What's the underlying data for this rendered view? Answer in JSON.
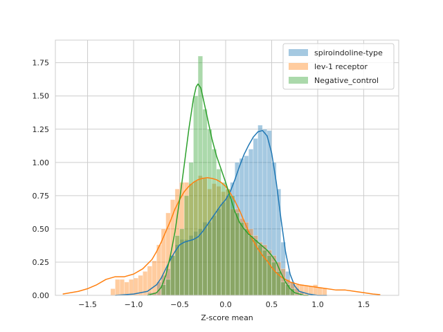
{
  "chart_data": {
    "type": "histogram+kde",
    "title": "",
    "xlabel": "Z-score mean",
    "ylabel": "",
    "xlim": [
      -1.85,
      1.88
    ],
    "ylim": [
      0,
      1.92
    ],
    "xticks": [
      -1.5,
      -1.0,
      -0.5,
      0.0,
      0.5,
      1.0,
      1.5
    ],
    "xtick_labels": [
      "−1.5",
      "−1.0",
      "−0.5",
      "0.0",
      "0.5",
      "1.0",
      "1.5"
    ],
    "yticks": [
      0,
      0.25,
      0.5,
      0.75,
      1.0,
      1.25,
      1.5,
      1.75
    ],
    "ytick_labels": [
      "0.00",
      "0.25",
      "0.50",
      "0.75",
      "1.00",
      "1.25",
      "1.50",
      "1.75"
    ],
    "grid": true,
    "legend_position": "top-right",
    "series": [
      {
        "name": "spiroindoline-type",
        "color": "#1f77b4",
        "bins": [
          [
            -0.85,
            -0.8,
            0.02
          ],
          [
            -0.8,
            -0.75,
            0.02
          ],
          [
            -0.75,
            -0.7,
            0.1
          ],
          [
            -0.7,
            -0.65,
            0.15
          ],
          [
            -0.65,
            -0.6,
            0.2
          ],
          [
            -0.6,
            -0.55,
            0.3
          ],
          [
            -0.55,
            -0.5,
            0.38
          ],
          [
            -0.5,
            -0.45,
            0.42
          ],
          [
            -0.45,
            -0.4,
            0.42
          ],
          [
            -0.4,
            -0.35,
            0.45
          ],
          [
            -0.35,
            -0.3,
            0.48
          ],
          [
            -0.3,
            -0.25,
            0.5
          ],
          [
            -0.25,
            -0.2,
            0.55
          ],
          [
            -0.2,
            -0.15,
            0.55
          ],
          [
            -0.15,
            -0.1,
            0.6
          ],
          [
            -0.1,
            -0.05,
            0.65
          ],
          [
            -0.05,
            0.0,
            0.7
          ],
          [
            0.0,
            0.05,
            0.75
          ],
          [
            0.05,
            0.1,
            0.85
          ],
          [
            0.1,
            0.15,
            1.0
          ],
          [
            0.15,
            0.2,
            1.03
          ],
          [
            0.2,
            0.25,
            1.05
          ],
          [
            0.25,
            0.3,
            1.1
          ],
          [
            0.3,
            0.35,
            1.18
          ],
          [
            0.35,
            0.4,
            1.28
          ],
          [
            0.4,
            0.45,
            1.25
          ],
          [
            0.45,
            0.5,
            1.24
          ],
          [
            0.5,
            0.55,
            1.0
          ],
          [
            0.55,
            0.6,
            0.8
          ],
          [
            0.6,
            0.65,
            0.4
          ],
          [
            0.65,
            0.7,
            0.18
          ],
          [
            0.7,
            0.75,
            0.1
          ],
          [
            0.75,
            0.8,
            0.05
          ],
          [
            0.8,
            0.85,
            0.02
          ]
        ],
        "kde": [
          [
            -1.2,
            0.0
          ],
          [
            -1.0,
            0.01
          ],
          [
            -0.85,
            0.03
          ],
          [
            -0.75,
            0.08
          ],
          [
            -0.7,
            0.13
          ],
          [
            -0.65,
            0.2
          ],
          [
            -0.6,
            0.27
          ],
          [
            -0.55,
            0.33
          ],
          [
            -0.5,
            0.38
          ],
          [
            -0.45,
            0.4
          ],
          [
            -0.4,
            0.41
          ],
          [
            -0.35,
            0.42
          ],
          [
            -0.3,
            0.44
          ],
          [
            -0.25,
            0.48
          ],
          [
            -0.2,
            0.53
          ],
          [
            -0.15,
            0.58
          ],
          [
            -0.1,
            0.63
          ],
          [
            -0.05,
            0.68
          ],
          [
            0.0,
            0.72
          ],
          [
            0.05,
            0.78
          ],
          [
            0.1,
            0.87
          ],
          [
            0.15,
            0.97
          ],
          [
            0.2,
            1.06
          ],
          [
            0.25,
            1.13
          ],
          [
            0.3,
            1.19
          ],
          [
            0.35,
            1.23
          ],
          [
            0.4,
            1.24
          ],
          [
            0.45,
            1.2
          ],
          [
            0.5,
            1.07
          ],
          [
            0.55,
            0.85
          ],
          [
            0.6,
            0.58
          ],
          [
            0.65,
            0.33
          ],
          [
            0.7,
            0.16
          ],
          [
            0.75,
            0.07
          ],
          [
            0.8,
            0.03
          ],
          [
            0.9,
            0.01
          ],
          [
            1.0,
            0.0
          ],
          [
            1.1,
            0.0
          ]
        ]
      },
      {
        "name": "lev-1 receptor",
        "color": "#ff7f0e",
        "bins": [
          [
            -1.25,
            -1.2,
            0.05
          ],
          [
            -1.2,
            -1.15,
            0.12
          ],
          [
            -1.15,
            -1.1,
            0.12
          ],
          [
            -1.1,
            -1.05,
            0.1
          ],
          [
            -1.05,
            -1.0,
            0.12
          ],
          [
            -1.0,
            -0.95,
            0.13
          ],
          [
            -0.95,
            -0.9,
            0.15
          ],
          [
            -0.9,
            -0.85,
            0.18
          ],
          [
            -0.85,
            -0.8,
            0.22
          ],
          [
            -0.8,
            -0.75,
            0.26
          ],
          [
            -0.75,
            -0.7,
            0.38
          ],
          [
            -0.7,
            -0.65,
            0.5
          ],
          [
            -0.65,
            -0.6,
            0.62
          ],
          [
            -0.6,
            -0.55,
            0.72
          ],
          [
            -0.55,
            -0.5,
            0.8
          ],
          [
            -0.5,
            -0.45,
            0.85
          ],
          [
            -0.45,
            -0.4,
            0.85
          ],
          [
            -0.4,
            -0.35,
            0.84
          ],
          [
            -0.35,
            -0.3,
            0.86
          ],
          [
            -0.3,
            -0.25,
            0.9
          ],
          [
            -0.25,
            -0.2,
            0.88
          ],
          [
            -0.2,
            -0.15,
            0.8
          ],
          [
            -0.15,
            -0.1,
            0.84
          ],
          [
            -0.1,
            -0.05,
            0.82
          ],
          [
            -0.05,
            0.0,
            0.78
          ],
          [
            0.0,
            0.05,
            0.8
          ],
          [
            0.05,
            0.1,
            0.65
          ],
          [
            0.1,
            0.15,
            0.65
          ],
          [
            0.15,
            0.2,
            0.58
          ],
          [
            0.2,
            0.25,
            0.55
          ],
          [
            0.25,
            0.3,
            0.5
          ],
          [
            0.3,
            0.35,
            0.45
          ],
          [
            0.35,
            0.4,
            0.4
          ],
          [
            0.4,
            0.45,
            0.38
          ],
          [
            0.45,
            0.5,
            0.34
          ],
          [
            0.5,
            0.55,
            0.3
          ],
          [
            0.55,
            0.6,
            0.25
          ],
          [
            0.6,
            0.65,
            0.2
          ],
          [
            0.65,
            0.7,
            0.12
          ],
          [
            0.7,
            0.75,
            0.1
          ],
          [
            0.75,
            0.8,
            0.08
          ],
          [
            0.8,
            0.85,
            0.08
          ],
          [
            0.85,
            0.9,
            0.07
          ],
          [
            0.9,
            0.95,
            0.07
          ],
          [
            0.95,
            1.0,
            0.08
          ],
          [
            1.0,
            1.05,
            0.06
          ],
          [
            1.05,
            1.1,
            0.05
          ]
        ],
        "kde": [
          [
            -1.77,
            0.01
          ],
          [
            -1.6,
            0.03
          ],
          [
            -1.5,
            0.05
          ],
          [
            -1.4,
            0.08
          ],
          [
            -1.3,
            0.12
          ],
          [
            -1.2,
            0.14
          ],
          [
            -1.1,
            0.14
          ],
          [
            -1.0,
            0.16
          ],
          [
            -0.9,
            0.2
          ],
          [
            -0.8,
            0.27
          ],
          [
            -0.75,
            0.33
          ],
          [
            -0.7,
            0.4
          ],
          [
            -0.65,
            0.48
          ],
          [
            -0.6,
            0.56
          ],
          [
            -0.55,
            0.65
          ],
          [
            -0.5,
            0.72
          ],
          [
            -0.45,
            0.78
          ],
          [
            -0.4,
            0.82
          ],
          [
            -0.35,
            0.85
          ],
          [
            -0.3,
            0.87
          ],
          [
            -0.25,
            0.88
          ],
          [
            -0.2,
            0.885
          ],
          [
            -0.15,
            0.88
          ],
          [
            -0.1,
            0.87
          ],
          [
            -0.05,
            0.85
          ],
          [
            0.0,
            0.82
          ],
          [
            0.05,
            0.77
          ],
          [
            0.1,
            0.71
          ],
          [
            0.15,
            0.64
          ],
          [
            0.2,
            0.56
          ],
          [
            0.25,
            0.48
          ],
          [
            0.3,
            0.41
          ],
          [
            0.35,
            0.35
          ],
          [
            0.4,
            0.3
          ],
          [
            0.45,
            0.26
          ],
          [
            0.5,
            0.21
          ],
          [
            0.55,
            0.17
          ],
          [
            0.6,
            0.14
          ],
          [
            0.65,
            0.12
          ],
          [
            0.7,
            0.1
          ],
          [
            0.8,
            0.08
          ],
          [
            0.9,
            0.07
          ],
          [
            1.0,
            0.06
          ],
          [
            1.1,
            0.05
          ],
          [
            1.2,
            0.04
          ],
          [
            1.3,
            0.04
          ],
          [
            1.4,
            0.03
          ],
          [
            1.5,
            0.02
          ],
          [
            1.6,
            0.01
          ],
          [
            1.68,
            0.005
          ]
        ]
      },
      {
        "name": "Negative_control",
        "color": "#2ca02c",
        "bins": [
          [
            -0.7,
            -0.65,
            0.08
          ],
          [
            -0.65,
            -0.6,
            0.12
          ],
          [
            -0.6,
            -0.55,
            0.3
          ],
          [
            -0.55,
            -0.5,
            0.45
          ],
          [
            -0.5,
            -0.45,
            0.5
          ],
          [
            -0.45,
            -0.4,
            0.75
          ],
          [
            -0.4,
            -0.35,
            1.0
          ],
          [
            -0.35,
            -0.3,
            1.5
          ],
          [
            -0.3,
            -0.25,
            1.8
          ],
          [
            -0.25,
            -0.2,
            1.4
          ],
          [
            -0.2,
            -0.15,
            1.25
          ],
          [
            -0.15,
            -0.1,
            1.1
          ],
          [
            -0.1,
            -0.05,
            0.95
          ],
          [
            -0.05,
            0.0,
            0.85
          ],
          [
            0.0,
            0.05,
            0.8
          ],
          [
            0.05,
            0.1,
            0.75
          ],
          [
            0.1,
            0.15,
            0.62
          ],
          [
            0.15,
            0.2,
            0.55
          ],
          [
            0.2,
            0.25,
            0.5
          ],
          [
            0.25,
            0.3,
            0.45
          ],
          [
            0.3,
            0.35,
            0.42
          ],
          [
            0.35,
            0.4,
            0.38
          ],
          [
            0.4,
            0.45,
            0.34
          ],
          [
            0.45,
            0.5,
            0.3
          ],
          [
            0.5,
            0.55,
            0.25
          ],
          [
            0.55,
            0.6,
            0.18
          ],
          [
            0.6,
            0.65,
            0.1
          ],
          [
            0.65,
            0.7,
            0.08
          ],
          [
            0.7,
            0.75,
            0.05
          ]
        ],
        "kde": [
          [
            -0.85,
            0.0
          ],
          [
            -0.75,
            0.02
          ],
          [
            -0.7,
            0.06
          ],
          [
            -0.65,
            0.15
          ],
          [
            -0.6,
            0.3
          ],
          [
            -0.55,
            0.48
          ],
          [
            -0.5,
            0.72
          ],
          [
            -0.45,
            0.98
          ],
          [
            -0.4,
            1.25
          ],
          [
            -0.35,
            1.48
          ],
          [
            -0.32,
            1.57
          ],
          [
            -0.3,
            1.59
          ],
          [
            -0.27,
            1.56
          ],
          [
            -0.25,
            1.5
          ],
          [
            -0.2,
            1.34
          ],
          [
            -0.15,
            1.18
          ],
          [
            -0.1,
            1.05
          ],
          [
            -0.05,
            0.95
          ],
          [
            0.0,
            0.85
          ],
          [
            0.05,
            0.74
          ],
          [
            0.1,
            0.63
          ],
          [
            0.15,
            0.55
          ],
          [
            0.2,
            0.5
          ],
          [
            0.25,
            0.46
          ],
          [
            0.3,
            0.43
          ],
          [
            0.35,
            0.4
          ],
          [
            0.4,
            0.37
          ],
          [
            0.45,
            0.34
          ],
          [
            0.5,
            0.3
          ],
          [
            0.55,
            0.25
          ],
          [
            0.6,
            0.17
          ],
          [
            0.65,
            0.1
          ],
          [
            0.7,
            0.05
          ],
          [
            0.75,
            0.02
          ],
          [
            0.85,
            0.0
          ],
          [
            0.9,
            0.0
          ]
        ]
      }
    ]
  }
}
